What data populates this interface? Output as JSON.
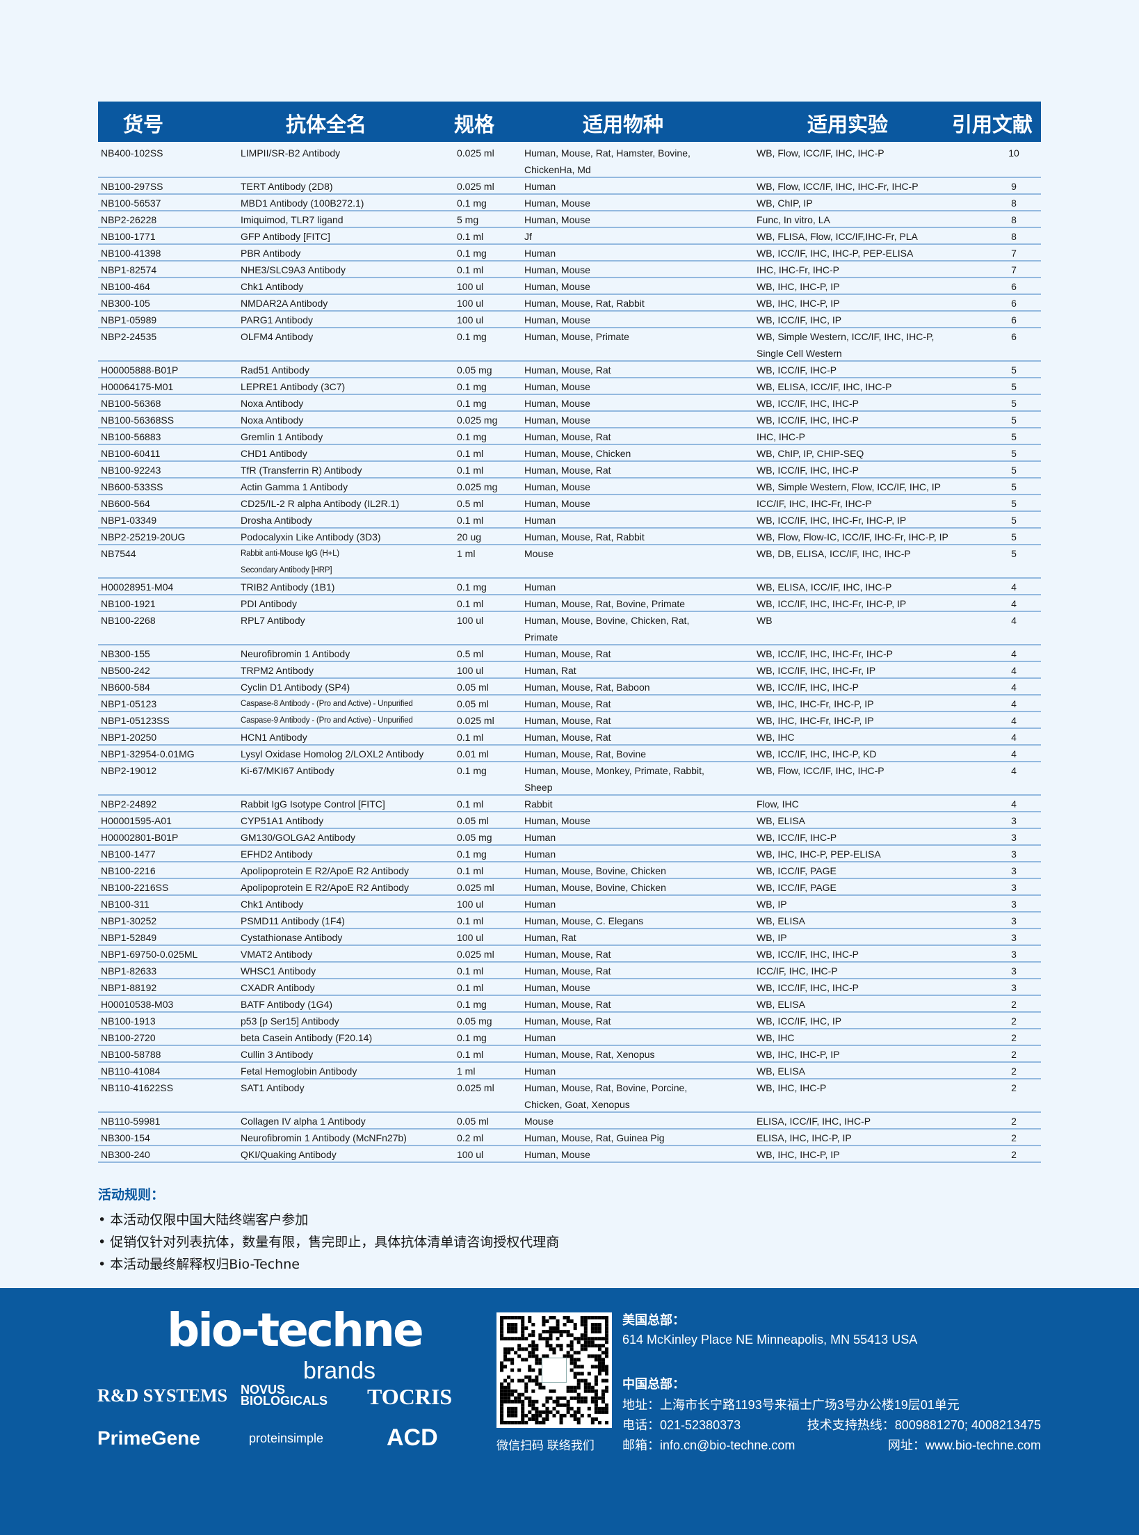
{
  "table": {
    "headers": [
      "货号",
      "抗体全名",
      "规格",
      "适用物种",
      "适用实验",
      "引用文献"
    ],
    "rows": [
      [
        "NB400-102SS",
        "LIMPII/SR-B2 Antibody",
        "0.025 ml",
        "Human, Mouse, Rat, Hamster, Bovine,\nChickenHa, Md",
        "WB, Flow, ICC/IF, IHC, IHC-P",
        "10"
      ],
      [
        "NB100-297SS",
        "TERT Antibody (2D8)",
        "0.025 ml",
        "Human",
        "WB, Flow, ICC/IF, IHC, IHC-Fr, IHC-P",
        "9"
      ],
      [
        "NB100-56537",
        "MBD1 Antibody (100B272.1)",
        "0.1 mg",
        "Human, Mouse",
        "WB, ChIP, IP",
        "8"
      ],
      [
        "NBP2-26228",
        "Imiquimod, TLR7 ligand",
        "5 mg",
        "Human, Mouse",
        "Func, In vitro, LA",
        "8"
      ],
      [
        "NB100-1771",
        "GFP Antibody [FITC]",
        "0.1 ml",
        "Jf",
        "WB, FLISA, Flow, ICC/IF,IHC-Fr, PLA",
        "8"
      ],
      [
        "NB100-41398",
        "PBR Antibody",
        "0.1 mg",
        "Human",
        "WB, ICC/IF, IHC, IHC-P, PEP-ELISA",
        "7"
      ],
      [
        "NBP1-82574",
        "NHE3/SLC9A3 Antibody",
        "0.1 ml",
        "Human, Mouse",
        "IHC, IHC-Fr, IHC-P",
        "7"
      ],
      [
        "NB100-464",
        "Chk1 Antibody",
        "100 ul",
        "Human, Mouse",
        "WB, IHC, IHC-P, IP",
        "6"
      ],
      [
        "NB300-105",
        "NMDAR2A Antibody",
        "100 ul",
        "Human, Mouse, Rat, Rabbit",
        "WB, IHC, IHC-P, IP",
        "6"
      ],
      [
        "NBP1-05989",
        "PARG1 Antibody",
        "100 ul",
        "Human, Mouse",
        "WB, ICC/IF, IHC, IP",
        "6"
      ],
      [
        "NBP2-24535",
        "OLFM4 Antibody",
        "0.1 mg",
        "Human, Mouse, Primate",
        "WB, Simple Western, ICC/IF, IHC, IHC-P,\nSingle Cell Western",
        "6"
      ],
      [
        "H00005888-B01P",
        "Rad51 Antibody",
        "0.05 mg",
        "Human, Mouse, Rat",
        "WB, ICC/IF, IHC-P",
        "5"
      ],
      [
        "H00064175-M01",
        "LEPRE1 Antibody (3C7)",
        "0.1 mg",
        "Human, Mouse",
        "WB, ELISA, ICC/IF, IHC, IHC-P",
        "5"
      ],
      [
        "NB100-56368",
        "Noxa Antibody",
        "0.1 mg",
        "Human, Mouse",
        "WB, ICC/IF, IHC, IHC-P",
        "5"
      ],
      [
        "NB100-56368SS",
        "Noxa Antibody",
        "0.025 mg",
        "Human, Mouse",
        "WB, ICC/IF, IHC, IHC-P",
        "5"
      ],
      [
        "NB100-56883",
        "Gremlin 1 Antibody",
        "0.1 mg",
        "Human, Mouse, Rat",
        "IHC, IHC-P",
        "5"
      ],
      [
        "NB100-60411",
        "CHD1 Antibody",
        "0.1 ml",
        "Human, Mouse, Chicken",
        "WB, ChIP, IP, CHIP-SEQ",
        "5"
      ],
      [
        "NB100-92243",
        "TfR (Transferrin R) Antibody",
        "0.1 ml",
        "Human, Mouse, Rat",
        "WB, ICC/IF, IHC, IHC-P",
        "5"
      ],
      [
        "NB600-533SS",
        "Actin Gamma 1 Antibody",
        "0.025 mg",
        "Human, Mouse",
        "WB, Simple Western, Flow, ICC/IF, IHC, IP",
        "5"
      ],
      [
        "NB600-564",
        "CD25/IL-2 R alpha Antibody (IL2R.1)",
        "0.5 ml",
        "Human, Mouse",
        "ICC/IF, IHC, IHC-Fr, IHC-P",
        "5"
      ],
      [
        "NBP1-03349",
        "Drosha Antibody",
        "0.1 ml",
        "Human",
        "WB, ICC/IF, IHC, IHC-Fr, IHC-P, IP",
        "5"
      ],
      [
        "NBP2-25219-20UG",
        "Podocalyxin Like Antibody (3D3)",
        "20 ug",
        "Human, Mouse, Rat, Rabbit",
        "WB, Flow, Flow-IC, ICC/IF, IHC-Fr, IHC-P, IP",
        "5"
      ],
      [
        "NB7544",
        "Rabbit anti-Mouse IgG (H+L)\nSecondary Antibody [HRP]",
        "1 ml",
        "Mouse",
        "WB, DB, ELISA, ICC/IF, IHC, IHC-P",
        "5"
      ],
      [
        "H00028951-M04",
        "TRIB2 Antibody (1B1)",
        "0.1 mg",
        "Human",
        "WB, ELISA, ICC/IF, IHC, IHC-P",
        "4"
      ],
      [
        "NB100-1921",
        "PDI Antibody",
        "0.1 ml",
        "Human, Mouse, Rat, Bovine, Primate",
        "WB, ICC/IF, IHC, IHC-Fr, IHC-P, IP",
        "4"
      ],
      [
        "NB100-2268",
        "RPL7 Antibody",
        "100 ul",
        "Human, Mouse, Bovine, Chicken, Rat,\nPrimate",
        "WB",
        "4"
      ],
      [
        "NB300-155",
        "Neurofibromin 1 Antibody",
        "0.5 ml",
        "Human, Mouse, Rat",
        "WB, ICC/IF, IHC, IHC-Fr, IHC-P",
        "4"
      ],
      [
        "NB500-242",
        "TRPM2 Antibody",
        "100 ul",
        "Human, Rat",
        "WB, ICC/IF, IHC, IHC-Fr, IP",
        "4"
      ],
      [
        "NB600-584",
        "Cyclin D1 Antibody (SP4)",
        "0.05 ml",
        "Human, Mouse, Rat, Baboon",
        "WB, ICC/IF, IHC, IHC-P",
        "4"
      ],
      [
        "NBP1-05123",
        "Caspase-8 Antibody - (Pro and Active) - Unpurified",
        "0.05 ml",
        "Human, Mouse, Rat",
        "WB, IHC, IHC-Fr, IHC-P, IP",
        "4"
      ],
      [
        "NBP1-05123SS",
        "Caspase-9 Antibody - (Pro and Active) - Unpurified",
        "0.025 ml",
        "Human, Mouse, Rat",
        "WB, IHC, IHC-Fr, IHC-P, IP",
        "4"
      ],
      [
        "NBP1-20250",
        "HCN1 Antibody",
        "0.1 ml",
        "Human, Mouse, Rat",
        "WB, IHC",
        "4"
      ],
      [
        "NBP1-32954-0.01MG",
        "Lysyl Oxidase Homolog 2/LOXL2 Antibody",
        "0.01 ml",
        "Human, Mouse, Rat, Bovine",
        "WB, ICC/IF, IHC, IHC-P, KD",
        "4"
      ],
      [
        "NBP2-19012",
        "Ki-67/MKI67 Antibody",
        "0.1 mg",
        "Human, Mouse, Monkey, Primate, Rabbit,\nSheep",
        "WB, Flow, ICC/IF, IHC, IHC-P",
        "4"
      ],
      [
        "NBP2-24892",
        "Rabbit IgG Isotype Control [FITC]",
        "0.1 ml",
        "Rabbit",
        "Flow, IHC",
        "4"
      ],
      [
        "H00001595-A01",
        "CYP51A1 Antibody",
        "0.05 ml",
        "Human, Mouse",
        "WB, ELISA",
        "3"
      ],
      [
        "H00002801-B01P",
        "GM130/GOLGA2 Antibody",
        "0.05 mg",
        "Human",
        "WB, ICC/IF, IHC-P",
        "3"
      ],
      [
        "NB100-1477",
        "EFHD2 Antibody",
        "0.1 mg",
        "Human",
        "WB, IHC, IHC-P, PEP-ELISA",
        "3"
      ],
      [
        "NB100-2216",
        "Apolipoprotein E R2/ApoE R2 Antibody",
        "0.1 ml",
        "Human, Mouse, Bovine, Chicken",
        "WB, ICC/IF, PAGE",
        "3"
      ],
      [
        "NB100-2216SS",
        "Apolipoprotein E R2/ApoE R2 Antibody",
        "0.025 ml",
        "Human, Mouse, Bovine, Chicken",
        "WB, ICC/IF, PAGE",
        "3"
      ],
      [
        "NB100-311",
        "Chk1 Antibody",
        "100 ul",
        "Human",
        "WB, IP",
        "3"
      ],
      [
        "NBP1-30252",
        "PSMD11 Antibody (1F4)",
        "0.1 ml",
        "Human, Mouse, C. Elegans",
        "WB, ELISA",
        "3"
      ],
      [
        "NBP1-52849",
        "Cystathionase Antibody",
        "100 ul",
        "Human, Rat",
        "WB, IP",
        "3"
      ],
      [
        "NBP1-69750-0.025ML",
        "VMAT2 Antibody",
        "0.025 ml",
        "Human, Mouse, Rat",
        "WB, ICC/IF, IHC, IHC-P",
        "3"
      ],
      [
        "NBP1-82633",
        "WHSC1 Antibody",
        "0.1 ml",
        "Human, Mouse, Rat",
        "ICC/IF, IHC, IHC-P",
        "3"
      ],
      [
        "NBP1-88192",
        "CXADR Antibody",
        "0.1 ml",
        "Human, Mouse",
        "WB, ICC/IF, IHC, IHC-P",
        "3"
      ],
      [
        "H00010538-M03",
        "BATF Antibody (1G4)",
        "0.1 mg",
        "Human, Mouse, Rat",
        "WB, ELISA",
        "2"
      ],
      [
        "NB100-1913",
        "p53 [p Ser15] Antibody",
        "0.05 mg",
        "Human, Mouse, Rat",
        "WB, ICC/IF, IHC, IP",
        "2"
      ],
      [
        "NB100-2720",
        "beta Casein Antibody (F20.14)",
        "0.1 mg",
        "Human",
        "WB, IHC",
        "2"
      ],
      [
        "NB100-58788",
        "Cullin 3 Antibody",
        "0.1 ml",
        "Human, Mouse, Rat, Xenopus",
        "WB, IHC, IHC-P, IP",
        "2"
      ],
      [
        "NB110-41084",
        "Fetal Hemoglobin Antibody",
        "1 ml",
        "Human",
        "WB, ELISA",
        "2"
      ],
      [
        "NB110-41622SS",
        "SAT1 Antibody",
        "0.025 ml",
        "Human, Mouse, Rat, Bovine, Porcine,\nChicken, Goat, Xenopus",
        "WB, IHC, IHC-P",
        "2"
      ],
      [
        "NB110-59981",
        "Collagen IV alpha 1 Antibody",
        "0.05 ml",
        "Mouse",
        "ELISA, ICC/IF, IHC, IHC-P",
        "2"
      ],
      [
        "NB300-154",
        "Neurofibromin 1 Antibody (McNFn27b)",
        "0.2 ml",
        "Human, Mouse, Rat, Guinea Pig",
        "ELISA, IHC, IHC-P, IP",
        "2"
      ],
      [
        "NB300-240",
        "QKI/Quaking Antibody",
        "100 ul",
        "Human, Mouse",
        "WB, IHC, IHC-P, IP",
        "2"
      ]
    ]
  },
  "rules": {
    "title": "活动规则：",
    "items": [
      "• 本活动仅限中国大陆终端客户参加",
      "• 促销仅针对列表抗体，数量有限，售完即止，具体抗体清单请咨询授权代理商",
      "• 本活动最终解释权归Bio-Techne"
    ]
  },
  "footer": {
    "logo": "bio-techne",
    "logo_sub": "brands",
    "brands": [
      "R&D SYSTEMS",
      "NOVUS BIOLOGICALS",
      "TOCRIS",
      "PrimeGene",
      "proteinsimple",
      "ACD"
    ],
    "qr_caption": "微信扫码  联络我们",
    "us_title": "美国总部：",
    "us_address": "614 McKinley Place NE Minneapolis, MN 55413 USA",
    "cn_title": "中国总部：",
    "cn_address": "地址：上海市长宁路1193号来福士广场3号办公楼19层01单元",
    "phone": "电话：021-52380373",
    "hotline": "技术支持热线：8009881270; 4008213475",
    "email": "邮箱：info.cn@bio-techne.com",
    "website": "网址：www.bio-techne.com"
  },
  "colors": {
    "header": "#0a58a0",
    "footer": "#0b5a9f",
    "background": "#eef6fd",
    "row_border": "#93b9df"
  }
}
